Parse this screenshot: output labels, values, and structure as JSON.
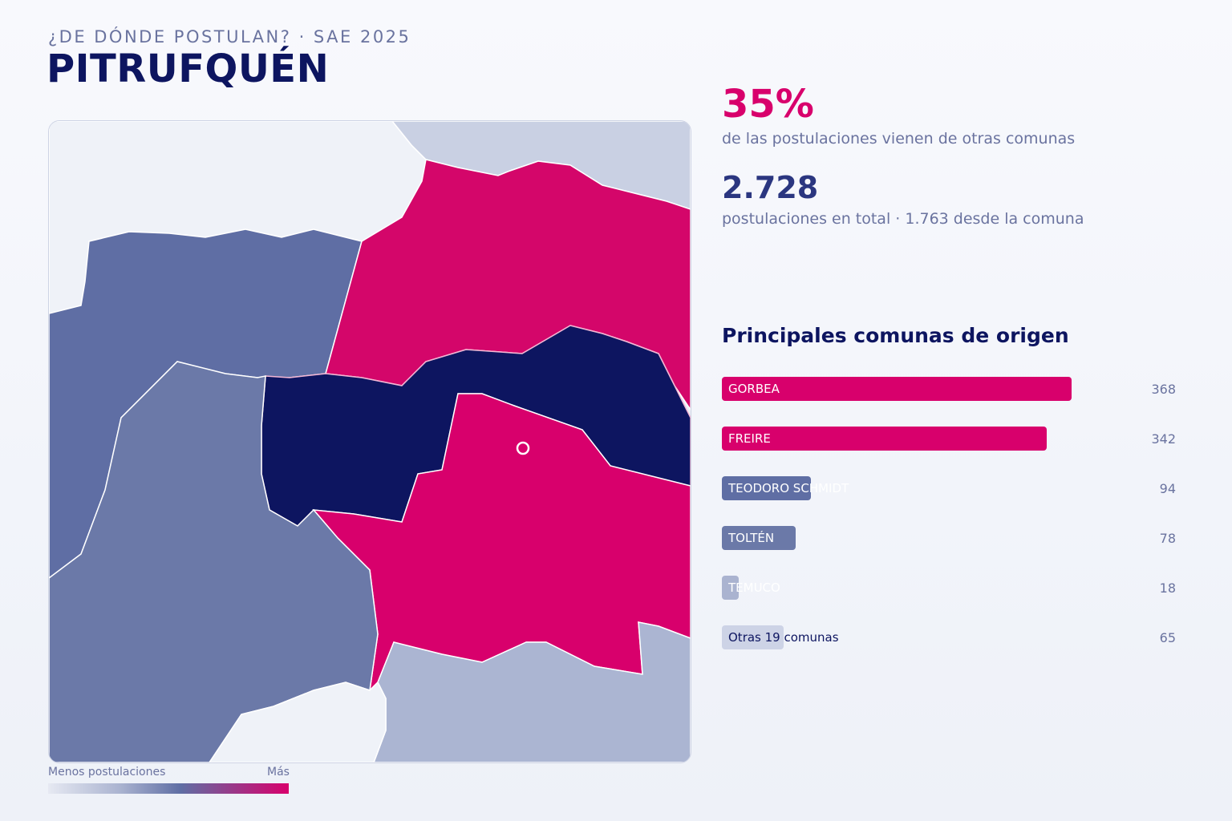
{
  "header": {
    "eyebrow": "¿DE DÓNDE POSTULAN? · SAE 2025",
    "title": "PITRUFQUÉN"
  },
  "map": {
    "legend_low": "Menos postulaciones",
    "legend_high": "Más",
    "colors": {
      "highest": "#d8006c",
      "selected_commune": "#0d1560",
      "mid": "#6b79a8",
      "low": "#abb5d2",
      "none": "#eef1f8"
    }
  },
  "stats": {
    "percent": "35%",
    "percent_label": "de las postulaciones vienen de otras comunas",
    "total": "2.728",
    "total_label": "postulaciones en total · 1.763 desde la comuna"
  },
  "origins": {
    "title": "Principales comunas de origen",
    "items": [
      {
        "name": "GORBEA",
        "value": "368",
        "n": 368,
        "color": "#d8006c"
      },
      {
        "name": "FREIRE",
        "value": "342",
        "n": 342,
        "color": "#d8006c"
      },
      {
        "name": "TEODORO SCHMIDT",
        "value": "94",
        "n": 94,
        "color": "#5f6ea4"
      },
      {
        "name": "TOLTÉN",
        "value": "78",
        "n": 78,
        "color": "#6b79a8"
      },
      {
        "name": "TEMUCO",
        "value": "18",
        "n": 18,
        "color": "#aab3d0"
      },
      {
        "name": "Otras 19 comunas",
        "value": "65",
        "n": 65,
        "color": "#cdd3e6"
      }
    ]
  }
}
